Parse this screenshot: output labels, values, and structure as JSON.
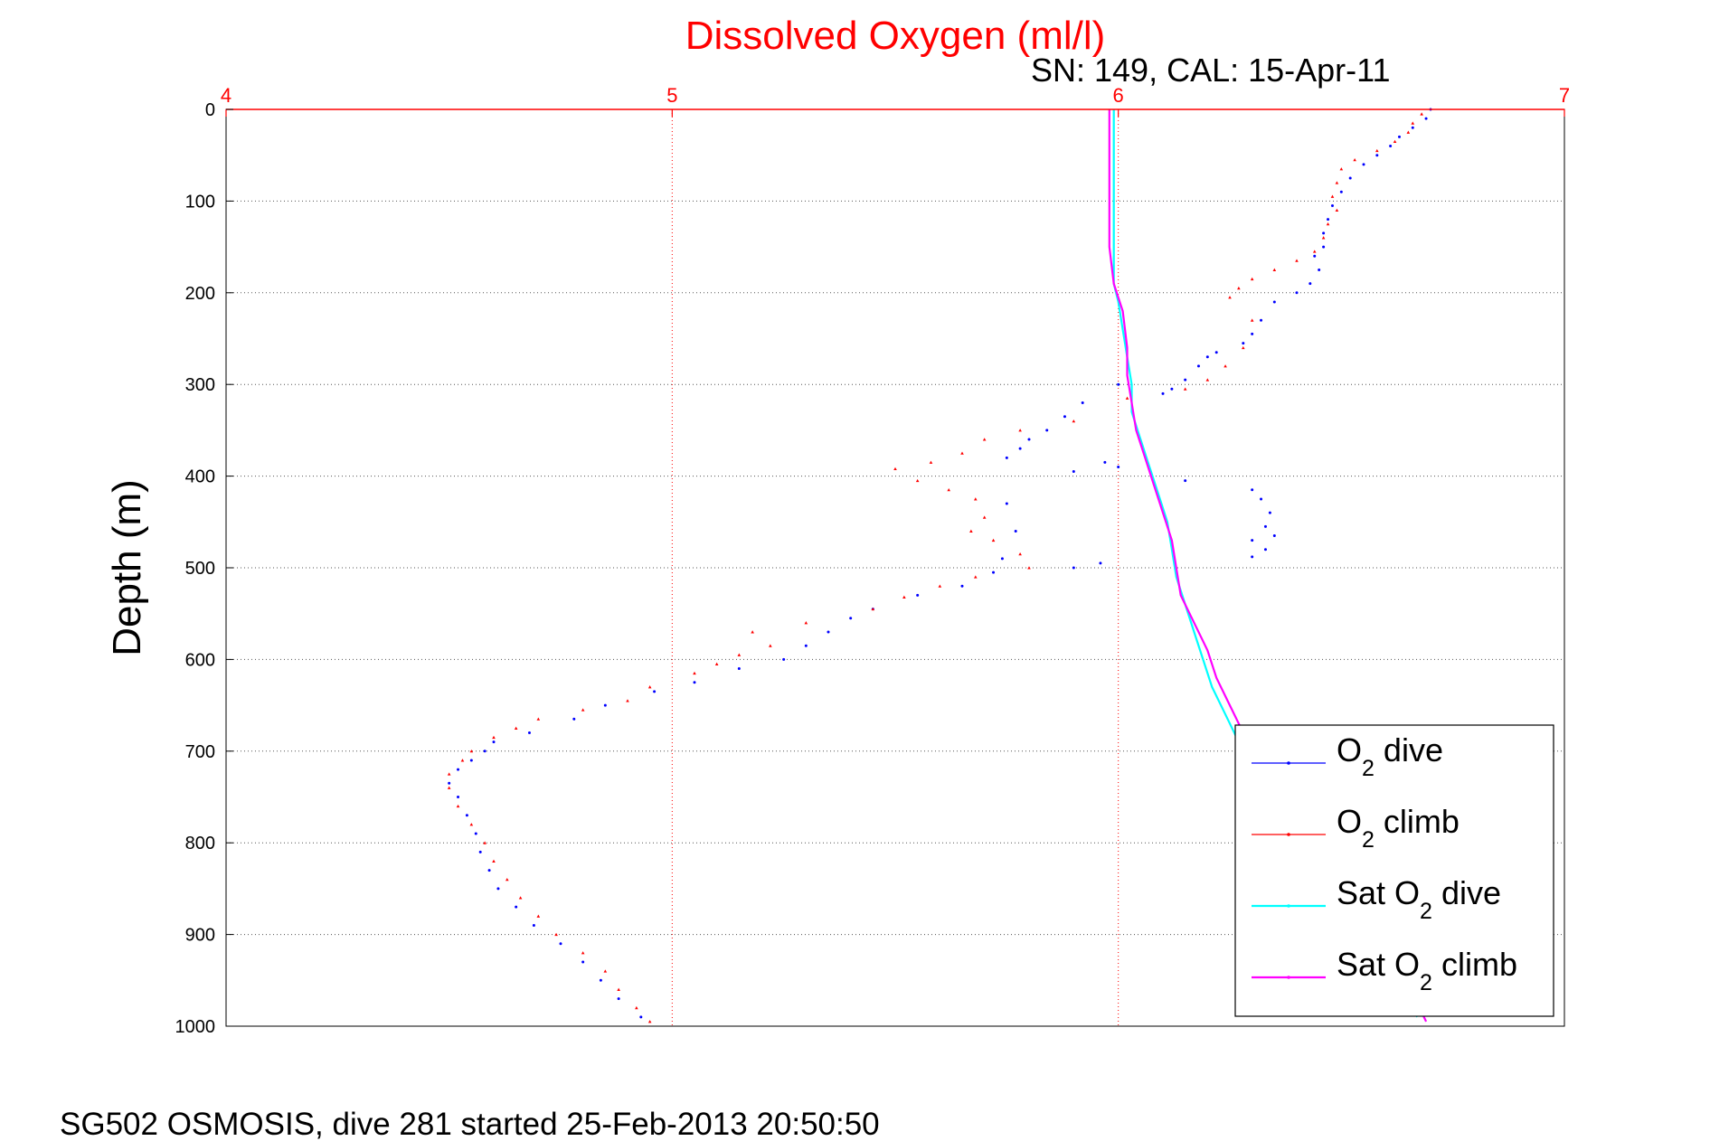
{
  "chart_data": {
    "type": "scatter",
    "title": "Dissolved Oxygen (ml/l)",
    "subtitle": "SN: 149, CAL: 15-Apr-11",
    "xlabel": "",
    "ylabel": "Depth (m)",
    "xlim": [
      4,
      7
    ],
    "ylim": [
      0,
      1000
    ],
    "y_reversed": true,
    "x_axis_position": "top",
    "xticks": [
      "4",
      "5",
      "6",
      "7"
    ],
    "yticks": [
      "0",
      "100",
      "200",
      "300",
      "400",
      "500",
      "600",
      "700",
      "800",
      "900",
      "1000"
    ],
    "grid": true,
    "legend_position": "bottom-right",
    "legend": [
      {
        "pre": "O",
        "sub": "2",
        "post": " dive"
      },
      {
        "pre": "O",
        "sub": "2",
        "post": " climb"
      },
      {
        "pre": "Sat O",
        "sub": "2",
        "post": " dive"
      },
      {
        "pre": "Sat O",
        "sub": "2",
        "post": " climb"
      }
    ],
    "colors": {
      "axis_x": "#ff0000",
      "grid_x": "#ff0000",
      "grid_y": "#555555",
      "o2_dive": "#0000ff",
      "o2_climb": "#ff0000",
      "sat_dive": "#00ffff",
      "sat_climb": "#ff00ff"
    },
    "series": [
      {
        "key": "o2_dive",
        "style": "dots",
        "points": [
          [
            6.7,
            0
          ],
          [
            6.69,
            10
          ],
          [
            6.66,
            20
          ],
          [
            6.63,
            30
          ],
          [
            6.61,
            40
          ],
          [
            6.58,
            50
          ],
          [
            6.55,
            60
          ],
          [
            6.52,
            75
          ],
          [
            6.5,
            90
          ],
          [
            6.48,
            105
          ],
          [
            6.47,
            120
          ],
          [
            6.46,
            135
          ],
          [
            6.46,
            150
          ],
          [
            6.44,
            160
          ],
          [
            6.45,
            175
          ],
          [
            6.43,
            190
          ],
          [
            6.4,
            200
          ],
          [
            6.35,
            210
          ],
          [
            6.32,
            230
          ],
          [
            6.3,
            245
          ],
          [
            6.28,
            255
          ],
          [
            6.22,
            265
          ],
          [
            6.18,
            280
          ],
          [
            6.15,
            295
          ],
          [
            6.12,
            305
          ],
          [
            6.2,
            270
          ],
          [
            6.1,
            310
          ],
          [
            6.0,
            300
          ],
          [
            5.92,
            320
          ],
          [
            5.88,
            335
          ],
          [
            5.84,
            350
          ],
          [
            5.8,
            360
          ],
          [
            5.78,
            370
          ],
          [
            5.75,
            380
          ],
          [
            5.97,
            385
          ],
          [
            6.0,
            390
          ],
          [
            5.9,
            395
          ],
          [
            6.15,
            405
          ],
          [
            6.3,
            415
          ],
          [
            6.32,
            425
          ],
          [
            6.34,
            440
          ],
          [
            6.33,
            455
          ],
          [
            6.35,
            465
          ],
          [
            6.3,
            470
          ],
          [
            6.33,
            480
          ],
          [
            6.3,
            488
          ],
          [
            5.75,
            430
          ],
          [
            5.77,
            460
          ],
          [
            5.74,
            490
          ],
          [
            5.72,
            505
          ],
          [
            5.9,
            500
          ],
          [
            5.96,
            495
          ],
          [
            5.65,
            520
          ],
          [
            5.55,
            530
          ],
          [
            5.45,
            545
          ],
          [
            5.4,
            555
          ],
          [
            5.35,
            570
          ],
          [
            5.3,
            585
          ],
          [
            5.25,
            600
          ],
          [
            5.15,
            610
          ],
          [
            5.05,
            625
          ],
          [
            4.96,
            635
          ],
          [
            4.85,
            650
          ],
          [
            4.78,
            665
          ],
          [
            4.68,
            680
          ],
          [
            4.6,
            690
          ],
          [
            4.58,
            700
          ],
          [
            4.55,
            710
          ],
          [
            4.52,
            720
          ],
          [
            4.5,
            735
          ],
          [
            4.52,
            750
          ],
          [
            4.54,
            770
          ],
          [
            4.56,
            790
          ],
          [
            4.57,
            810
          ],
          [
            4.59,
            830
          ],
          [
            4.61,
            850
          ],
          [
            4.65,
            870
          ],
          [
            4.69,
            890
          ],
          [
            4.75,
            910
          ],
          [
            4.8,
            930
          ],
          [
            4.84,
            950
          ],
          [
            4.88,
            970
          ],
          [
            4.93,
            990
          ]
        ]
      },
      {
        "key": "o2_climb",
        "style": "tri",
        "points": [
          [
            6.68,
            5
          ],
          [
            6.66,
            15
          ],
          [
            6.65,
            25
          ],
          [
            6.62,
            35
          ],
          [
            6.58,
            45
          ],
          [
            6.53,
            55
          ],
          [
            6.5,
            65
          ],
          [
            6.49,
            80
          ],
          [
            6.48,
            95
          ],
          [
            6.49,
            110
          ],
          [
            6.47,
            125
          ],
          [
            6.46,
            140
          ],
          [
            6.44,
            155
          ],
          [
            6.4,
            165
          ],
          [
            6.35,
            175
          ],
          [
            6.3,
            185
          ],
          [
            6.27,
            195
          ],
          [
            6.25,
            205
          ],
          [
            6.3,
            230
          ],
          [
            6.28,
            260
          ],
          [
            6.24,
            280
          ],
          [
            6.2,
            295
          ],
          [
            6.15,
            305
          ],
          [
            6.02,
            315
          ],
          [
            5.9,
            340
          ],
          [
            5.78,
            350
          ],
          [
            5.7,
            360
          ],
          [
            5.65,
            375
          ],
          [
            5.58,
            385
          ],
          [
            5.5,
            392
          ],
          [
            5.55,
            405
          ],
          [
            5.62,
            415
          ],
          [
            5.68,
            425
          ],
          [
            5.7,
            445
          ],
          [
            5.67,
            460
          ],
          [
            5.72,
            470
          ],
          [
            5.78,
            485
          ],
          [
            5.8,
            500
          ],
          [
            5.68,
            510
          ],
          [
            5.6,
            520
          ],
          [
            5.52,
            532
          ],
          [
            5.45,
            545
          ],
          [
            5.3,
            560
          ],
          [
            5.18,
            570
          ],
          [
            5.22,
            585
          ],
          [
            5.15,
            595
          ],
          [
            5.1,
            605
          ],
          [
            5.05,
            615
          ],
          [
            4.95,
            630
          ],
          [
            4.9,
            645
          ],
          [
            4.8,
            655
          ],
          [
            4.7,
            665
          ],
          [
            4.65,
            675
          ],
          [
            4.6,
            685
          ],
          [
            4.55,
            700
          ],
          [
            4.53,
            710
          ],
          [
            4.5,
            725
          ],
          [
            4.5,
            740
          ],
          [
            4.52,
            760
          ],
          [
            4.55,
            780
          ],
          [
            4.58,
            800
          ],
          [
            4.6,
            820
          ],
          [
            4.63,
            840
          ],
          [
            4.66,
            860
          ],
          [
            4.7,
            880
          ],
          [
            4.74,
            900
          ],
          [
            4.8,
            920
          ],
          [
            4.85,
            940
          ],
          [
            4.88,
            960
          ],
          [
            4.92,
            980
          ],
          [
            4.95,
            995
          ]
        ]
      },
      {
        "key": "sat_dive",
        "style": "line",
        "points": [
          [
            5.99,
            0
          ],
          [
            5.99,
            50
          ],
          [
            5.99,
            100
          ],
          [
            5.99,
            150
          ],
          [
            5.99,
            190
          ],
          [
            6.0,
            210
          ],
          [
            6.01,
            240
          ],
          [
            6.02,
            270
          ],
          [
            6.03,
            300
          ],
          [
            6.03,
            330
          ],
          [
            6.05,
            360
          ],
          [
            6.07,
            390
          ],
          [
            6.09,
            420
          ],
          [
            6.11,
            450
          ],
          [
            6.12,
            480
          ],
          [
            6.13,
            510
          ],
          [
            6.15,
            540
          ],
          [
            6.17,
            570
          ],
          [
            6.19,
            600
          ],
          [
            6.21,
            630
          ],
          [
            6.24,
            660
          ],
          [
            6.27,
            690
          ],
          [
            6.31,
            720
          ],
          [
            6.35,
            750
          ],
          [
            6.4,
            790
          ],
          [
            6.46,
            830
          ],
          [
            6.52,
            870
          ],
          [
            6.58,
            910
          ],
          [
            6.63,
            950
          ],
          [
            6.67,
            990
          ]
        ]
      },
      {
        "key": "sat_climb",
        "style": "line",
        "points": [
          [
            5.98,
            0
          ],
          [
            5.98,
            50
          ],
          [
            5.98,
            100
          ],
          [
            5.98,
            150
          ],
          [
            5.99,
            190
          ],
          [
            6.01,
            220
          ],
          [
            6.02,
            260
          ],
          [
            6.02,
            290
          ],
          [
            6.03,
            320
          ],
          [
            6.04,
            350
          ],
          [
            6.06,
            380
          ],
          [
            6.08,
            410
          ],
          [
            6.1,
            440
          ],
          [
            6.12,
            470
          ],
          [
            6.13,
            500
          ],
          [
            6.14,
            530
          ],
          [
            6.17,
            560
          ],
          [
            6.2,
            590
          ],
          [
            6.22,
            620
          ],
          [
            6.25,
            650
          ],
          [
            6.28,
            680
          ],
          [
            6.32,
            710
          ],
          [
            6.36,
            740
          ],
          [
            6.41,
            780
          ],
          [
            6.47,
            820
          ],
          [
            6.53,
            860
          ],
          [
            6.59,
            900
          ],
          [
            6.64,
            940
          ],
          [
            6.67,
            975
          ],
          [
            6.69,
            995
          ]
        ]
      }
    ]
  },
  "footer": "SG502 OSMOSIS, dive 281 started 25-Feb-2013 20:50:50"
}
